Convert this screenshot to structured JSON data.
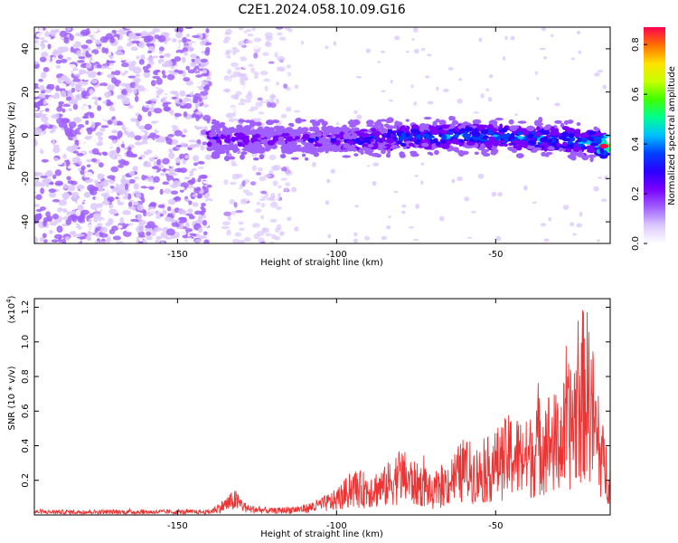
{
  "figure_title": "C2E1.2024.058.10.09.G16",
  "colors": {
    "snr_line": "#ee3333",
    "axis": "#000000",
    "colormap": [
      "#ffffff",
      "#dcc8ff",
      "#a060ff",
      "#7a00ff",
      "#2a00ff",
      "#0040ff",
      "#00c0ff",
      "#00ff90",
      "#40ff00",
      "#c8ff00",
      "#ffe000",
      "#ff7000",
      "#ff0050"
    ]
  },
  "chart_data": [
    {
      "type": "heatmap",
      "title": "",
      "xlabel": "Height of straight line (km)",
      "ylabel": "Frequency (Hz)",
      "xlim": [
        -195,
        -14
      ],
      "ylim": [
        -50,
        50
      ],
      "xticks": [
        -150,
        -100,
        -50
      ],
      "yticks": [
        -40,
        -20,
        0,
        20,
        40
      ],
      "grid": false,
      "description_points": {
        "noise_region_x": [
          -195,
          -140
        ],
        "noise_strip_x": [
          -135,
          -115
        ],
        "signal_track": {
          "x": [
            -140,
            -120,
            -100,
            -80,
            -60,
            -40,
            -20,
            -15
          ],
          "center_freq": [
            -2,
            -2,
            -2,
            -1,
            0,
            -1,
            -3,
            -5
          ],
          "peak_amplitude": [
            0.3,
            0.25,
            0.3,
            0.4,
            0.45,
            0.45,
            0.5,
            0.85
          ]
        }
      },
      "colorbar": {
        "label": "Normalized spectral amplitude",
        "range": [
          0,
          0.87
        ],
        "ticks": [
          "0.0",
          "0.2",
          "0.4",
          "0.6",
          "0.8"
        ],
        "tick_values": [
          0.0,
          0.2,
          0.4,
          0.6,
          0.8
        ]
      }
    },
    {
      "type": "line",
      "title": "",
      "xlabel": "Height of straight line (km)",
      "ylabel": "SNR (10 * v/v)",
      "scale_label": "(x10",
      "scale_exponent": "4",
      "scale_suffix": ")",
      "xlim": [
        -195,
        -14
      ],
      "ylim": [
        0,
        1.25
      ],
      "xticks": [
        -150,
        -100,
        -50
      ],
      "yticks": [
        "0.2",
        "0.4",
        "0.6",
        "0.8",
        "1.0",
        "1.2"
      ],
      "ytick_values": [
        0.2,
        0.4,
        0.6,
        0.8,
        1.0,
        1.2
      ],
      "grid": false,
      "series": [
        {
          "x": [
            -195,
            -180,
            -160,
            -140,
            -135,
            -132,
            -128,
            -120,
            -110,
            -105,
            -100,
            -95,
            -90,
            -85,
            -80,
            -75,
            -72,
            -70,
            -65,
            -60,
            -55,
            -50,
            -45,
            -40,
            -35,
            -30,
            -25,
            -22,
            -20,
            -18,
            -16,
            -14
          ],
          "values": [
            0.03,
            0.03,
            0.03,
            0.03,
            0.1,
            0.15,
            0.06,
            0.04,
            0.06,
            0.1,
            0.15,
            0.26,
            0.25,
            0.28,
            0.4,
            0.3,
            0.3,
            0.2,
            0.32,
            0.45,
            0.4,
            0.5,
            0.6,
            0.55,
            0.75,
            0.7,
            1.0,
            1.25,
            1.1,
            0.7,
            0.5,
            0.35
          ]
        }
      ]
    }
  ]
}
